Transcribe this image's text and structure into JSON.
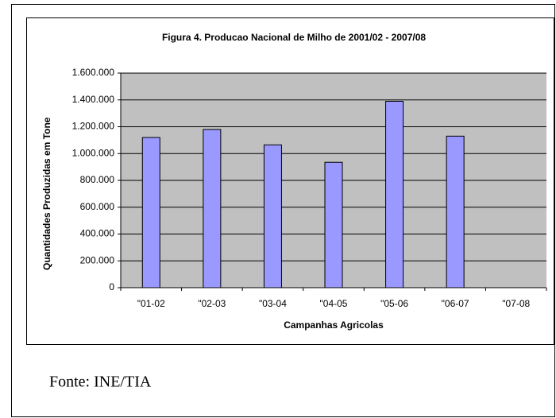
{
  "chart_data": {
    "type": "bar",
    "title": "Figura 4. Producao Nacional de Milho de 2001/02 - 2007/08",
    "y_label": "Quantidades Produzidas em Tone",
    "x_label": "Campanhas Agricolas",
    "categories": [
      "\"01-02",
      "\"02-03",
      "\"03-04",
      "\"04-05",
      "\"05-06",
      "\"06-07",
      "\"07-08"
    ],
    "values": [
      1120000,
      1180000,
      1065000,
      935000,
      1390000,
      1130000,
      null
    ],
    "color": "#9999ff",
    "ylim": [
      0,
      1600000
    ],
    "yticks": [
      0,
      {
        "value": 200000,
        "label": "200.000"
      },
      {
        "value": 400000,
        "label": "400.000"
      },
      {
        "value": 600000,
        "label": "600.000"
      },
      {
        "value": 800000,
        "label": "800.000"
      },
      {
        "value": 1000000,
        "label": "1.000.000"
      },
      {
        "value": 1200000,
        "label": "1.200.000"
      },
      {
        "value": 1400000,
        "label": "1.400.000"
      },
      {
        "value": 1600000,
        "label": "1.600.000"
      }
    ],
    "grid": true
  },
  "source": "Fonte: INE/TIA"
}
